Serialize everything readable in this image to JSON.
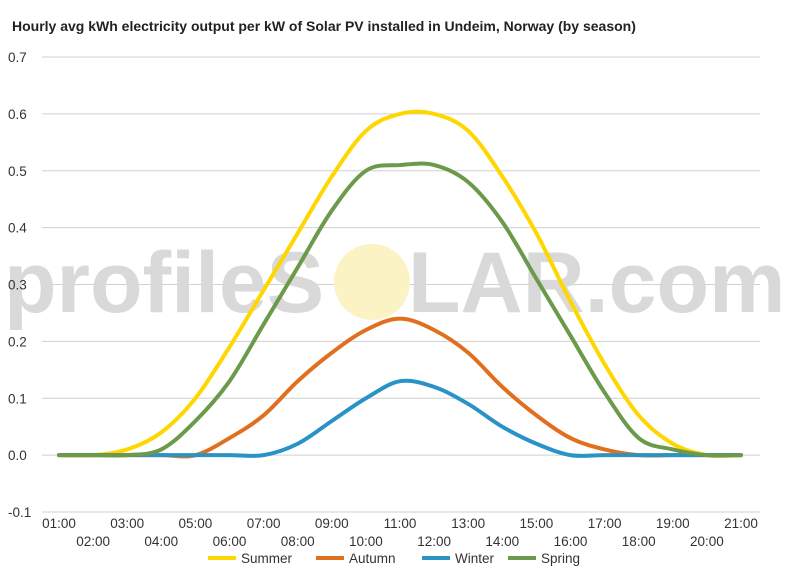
{
  "chart_data": {
    "type": "line",
    "title": "Hourly avg kWh electricity output per kW of Solar PV installed in Undeim, Norway (by season)",
    "xlabel": "",
    "ylabel": "",
    "ylim": [
      -0.1,
      0.7
    ],
    "yticks": [
      "-0.1",
      "0.0",
      "0.1",
      "0.2",
      "0.3",
      "0.4",
      "0.5",
      "0.6",
      "0.7"
    ],
    "x": [
      "01:00",
      "02:00",
      "03:00",
      "04:00",
      "05:00",
      "06:00",
      "07:00",
      "08:00",
      "09:00",
      "10:00",
      "11:00",
      "12:00",
      "13:00",
      "14:00",
      "15:00",
      "16:00",
      "17:00",
      "18:00",
      "19:00",
      "20:00",
      "21:00"
    ],
    "grid": "horizontal",
    "legend_position": "bottom",
    "series": [
      {
        "name": "Summer",
        "color": "#FFD700",
        "values": [
          0,
          0,
          0.01,
          0.04,
          0.1,
          0.19,
          0.29,
          0.39,
          0.49,
          0.57,
          0.6,
          0.6,
          0.57,
          0.49,
          0.39,
          0.27,
          0.16,
          0.07,
          0.02,
          0,
          0
        ]
      },
      {
        "name": "Autumn",
        "color": "#E07020",
        "values": [
          0,
          0,
          0,
          0,
          0,
          0.03,
          0.07,
          0.13,
          0.18,
          0.22,
          0.24,
          0.22,
          0.18,
          0.12,
          0.07,
          0.03,
          0.01,
          0,
          0,
          0,
          0
        ]
      },
      {
        "name": "Winter",
        "color": "#2A93C6",
        "values": [
          0,
          0,
          0,
          0,
          0,
          0,
          0,
          0.02,
          0.06,
          0.1,
          0.13,
          0.12,
          0.09,
          0.05,
          0.02,
          0,
          0,
          0,
          0,
          0,
          0
        ]
      },
      {
        "name": "Spring",
        "color": "#6B9A4A",
        "values": [
          0,
          0,
          0,
          0.01,
          0.06,
          0.13,
          0.23,
          0.33,
          0.43,
          0.5,
          0.51,
          0.51,
          0.48,
          0.41,
          0.31,
          0.21,
          0.11,
          0.03,
          0.01,
          0,
          0
        ]
      }
    ]
  },
  "watermark": {
    "left": "profileS",
    "right": "LAR.com"
  }
}
